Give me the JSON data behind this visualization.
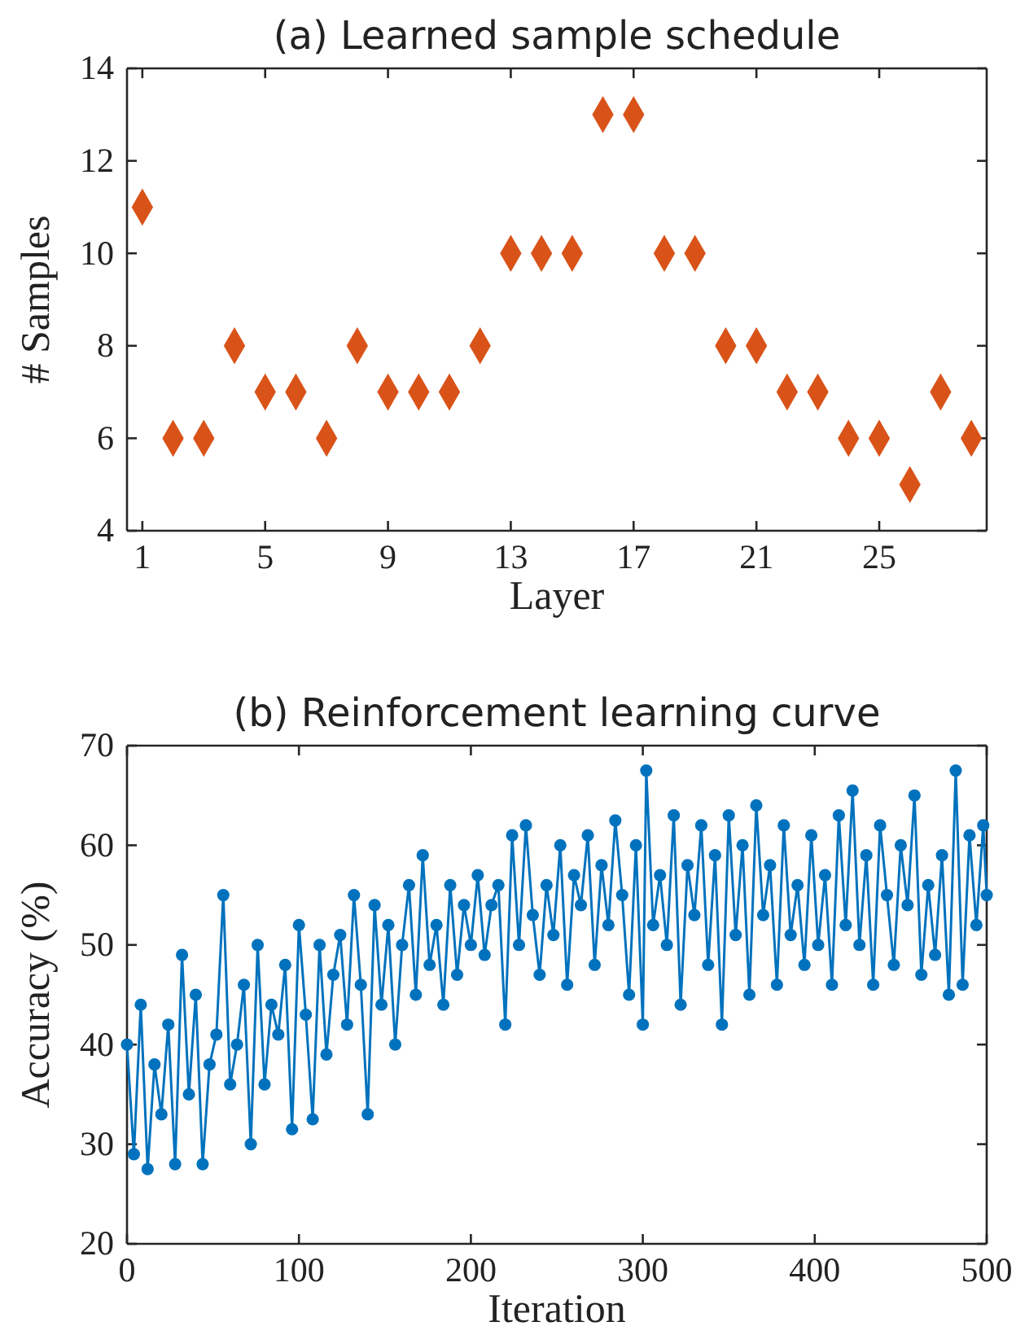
{
  "chart_data": [
    {
      "type": "scatter",
      "title": "(a) Learned sample schedule",
      "xlabel": "Layer",
      "ylabel": "# Samples",
      "marker": "diamond",
      "xlim": [
        0.5,
        28.5
      ],
      "xticks": [
        1,
        5,
        9,
        13,
        17,
        21,
        25
      ],
      "ylim": [
        4,
        14
      ],
      "yticks": [
        4,
        6,
        8,
        10,
        12,
        14
      ],
      "grid": false,
      "series": [
        {
          "color": "#d95319",
          "x": [
            1,
            2,
            3,
            4,
            5,
            6,
            7,
            8,
            9,
            10,
            11,
            12,
            13,
            14,
            15,
            16,
            17,
            18,
            19,
            20,
            21,
            22,
            23,
            24,
            25,
            26,
            27,
            28
          ],
          "values": [
            11,
            6,
            6,
            8,
            7,
            7,
            6,
            8,
            7,
            7,
            7,
            8,
            10,
            10,
            10,
            13,
            13,
            10,
            10,
            8,
            8,
            7,
            7,
            6,
            6,
            5,
            7,
            6
          ]
        }
      ]
    },
    {
      "type": "line",
      "title": "(b) Reinforcement learning curve",
      "xlabel": "Iteration",
      "ylabel": "Accuracy (%)",
      "marker": "circle",
      "line_style": "solid",
      "xlim": [
        0,
        500
      ],
      "xticks": [
        0,
        100,
        200,
        300,
        400,
        500
      ],
      "ylim": [
        20,
        70
      ],
      "yticks": [
        20,
        30,
        40,
        50,
        60,
        70
      ],
      "grid": false,
      "series": [
        {
          "color": "#0072bd",
          "x": [
            0,
            4,
            8,
            12,
            16,
            20,
            24,
            28,
            32,
            36,
            40,
            44,
            48,
            52,
            56,
            60,
            64,
            68,
            72,
            76,
            80,
            84,
            88,
            92,
            96,
            100,
            104,
            108,
            112,
            116,
            120,
            124,
            128,
            132,
            136,
            140,
            144,
            148,
            152,
            156,
            160,
            164,
            168,
            172,
            176,
            180,
            184,
            188,
            192,
            196,
            200,
            204,
            208,
            212,
            216,
            220,
            224,
            228,
            232,
            236,
            240,
            244,
            248,
            252,
            256,
            260,
            264,
            268,
            272,
            276,
            280,
            284,
            288,
            292,
            296,
            300,
            302,
            306,
            310,
            314,
            318,
            322,
            326,
            330,
            334,
            338,
            342,
            346,
            350,
            354,
            358,
            362,
            366,
            370,
            374,
            378,
            382,
            386,
            390,
            394,
            398,
            402,
            406,
            410,
            414,
            418,
            422,
            426,
            430,
            434,
            438,
            442,
            446,
            450,
            454,
            458,
            462,
            466,
            470,
            474,
            478,
            482,
            486,
            490,
            494,
            498,
            500
          ],
          "values": [
            40,
            29,
            44,
            27.5,
            38,
            33,
            42,
            28,
            49,
            35,
            45,
            28,
            38,
            41,
            55,
            36,
            40,
            46,
            30,
            50,
            36,
            44,
            41,
            48,
            31.5,
            52,
            43,
            32.5,
            50,
            39,
            47,
            51,
            42,
            55,
            46,
            33,
            54,
            44,
            52,
            40,
            50,
            56,
            45,
            59,
            48,
            52,
            44,
            56,
            47,
            54,
            50,
            57,
            49,
            54,
            56,
            42,
            61,
            50,
            62,
            53,
            47,
            56,
            51,
            60,
            46,
            57,
            54,
            61,
            48,
            58,
            52,
            62.5,
            55,
            45,
            60,
            42,
            67.5,
            52,
            57,
            50,
            63,
            44,
            58,
            53,
            62,
            48,
            59,
            42,
            63,
            51,
            60,
            45,
            64,
            53,
            58,
            46,
            62,
            51,
            56,
            48,
            61,
            50,
            57,
            46,
            63,
            52,
            65.5,
            50,
            59,
            46,
            62,
            55,
            48,
            60,
            54,
            65,
            47,
            56,
            49,
            59,
            45,
            67.5,
            46,
            61,
            52,
            62,
            55
          ]
        }
      ]
    }
  ]
}
